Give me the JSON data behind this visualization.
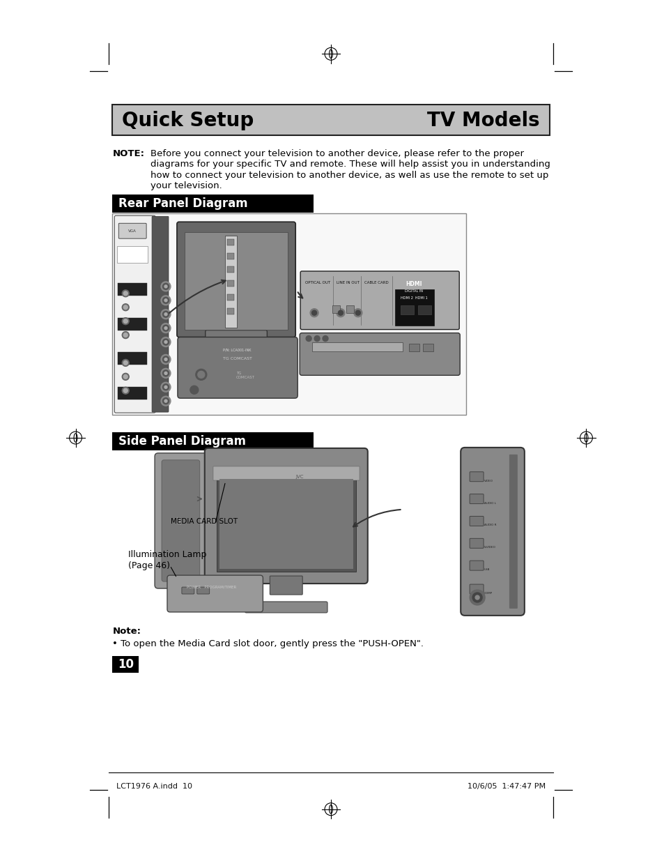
{
  "page_bg": "#ffffff",
  "header_bg": "#c0c0c0",
  "header_text_left": "Quick Setup",
  "header_text_right": "TV Models",
  "note_bold": "NOTE:",
  "note_lines": [
    "Before you connect your television to another device, please refer to the proper",
    "diagrams for your specific TV and remote. These will help assist you in understanding",
    "how to connect your television to another device, as well as use the remote to set up",
    "your television."
  ],
  "section1_text": "Rear Panel Diagram",
  "section2_text": "Side Panel Diagram",
  "note2_bold": "Note:",
  "note2_bullet": "• To open the Media Card slot door, gently press the \"PUSH-OPEN\".",
  "page_num": "10",
  "footer_left": "LCT1976 A.indd  10",
  "footer_right": "10/6/05  1:47:47 PM",
  "media_card_label": "MEDIA CARD SLOT",
  "illumination_line1": "Illumination Lamp",
  "illumination_line2": "(Page 46)"
}
